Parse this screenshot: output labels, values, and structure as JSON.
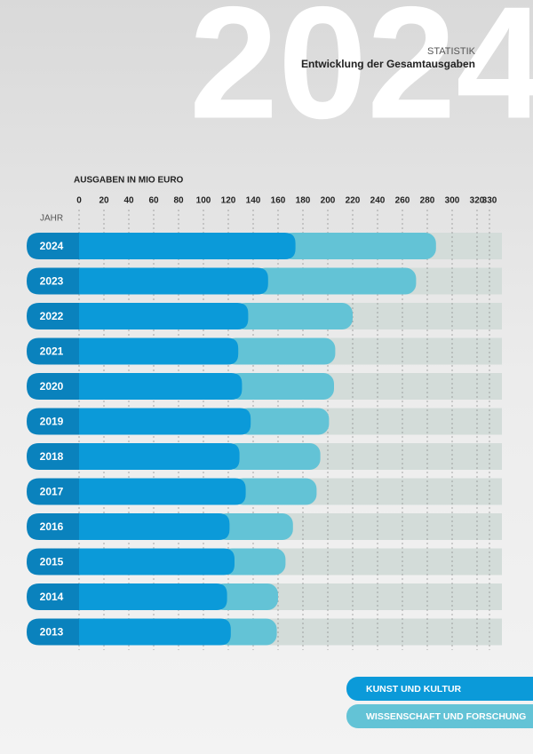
{
  "chart_data": {
    "type": "bar",
    "orientation": "horizontal",
    "stacked": true,
    "background_text": "2024",
    "subtitle": "STATISTIK",
    "title": "Entwicklung der Gesamtausgaben",
    "x_label": "AUSGABEN IN MIO EURO",
    "y_label": "JAHR",
    "categories": [
      "2024",
      "2023",
      "2022",
      "2021",
      "2020",
      "2019",
      "2018",
      "2017",
      "2016",
      "2015",
      "2014",
      "2013"
    ],
    "series": [
      {
        "name": "KUNST UND KULTUR",
        "color": "#0b9ad9",
        "values": [
          174,
          152,
          136,
          128,
          131,
          138,
          129,
          134,
          121,
          125,
          119,
          122
        ]
      },
      {
        "name": "WISSENSCHAFT UND FORSCHUNG",
        "color": "#63c3d6",
        "values": [
          113,
          119,
          84,
          78,
          74,
          63,
          65,
          57,
          51,
          41,
          41,
          37
        ]
      }
    ],
    "category_color": "#0a82bd",
    "track_color": "#d3dcd9",
    "xlim": [
      0,
      340
    ],
    "xticks": [
      0,
      20,
      40,
      60,
      80,
      100,
      120,
      140,
      160,
      180,
      200,
      220,
      240,
      260,
      280,
      300,
      320,
      330
    ],
    "grid": true
  }
}
